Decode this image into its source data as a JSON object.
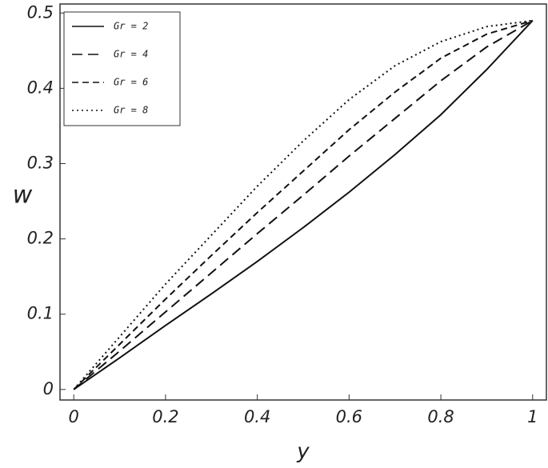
{
  "chart_data": {
    "type": "line",
    "x_label": "y",
    "y_label": "w",
    "x": [
      0,
      0.1,
      0.2,
      0.3,
      0.4,
      0.5,
      0.6,
      0.7,
      0.8,
      0.9,
      1
    ],
    "series": [
      {
        "name": "Gr = 2",
        "color": "#111111",
        "dash": "none",
        "values": [
          0,
          0.042,
          0.085,
          0.127,
          0.17,
          0.215,
          0.262,
          0.312,
          0.365,
          0.425,
          0.49
        ]
      },
      {
        "name": "Gr = 4",
        "color": "#111111",
        "dash": "13 7",
        "values": [
          0,
          0.051,
          0.103,
          0.155,
          0.207,
          0.258,
          0.31,
          0.36,
          0.41,
          0.455,
          0.49
        ]
      },
      {
        "name": "Gr = 6",
        "color": "#111111",
        "dash": "8 5",
        "values": [
          0,
          0.06,
          0.12,
          0.178,
          0.235,
          0.29,
          0.345,
          0.395,
          0.44,
          0.472,
          0.49
        ]
      },
      {
        "name": "Gr = 8",
        "color": "#111111",
        "dash": "2 4",
        "values": [
          0,
          0.07,
          0.14,
          0.205,
          0.27,
          0.33,
          0.385,
          0.43,
          0.462,
          0.482,
          0.49
        ]
      }
    ],
    "xlim": [
      -0.03,
      1.03
    ],
    "ylim": [
      -0.014,
      0.512
    ],
    "xticks": [
      0,
      0.2,
      0.4,
      0.6,
      0.8,
      1
    ],
    "yticks": [
      0,
      0.1,
      0.2,
      0.3,
      0.4,
      0.5
    ],
    "legend": "upper left"
  }
}
